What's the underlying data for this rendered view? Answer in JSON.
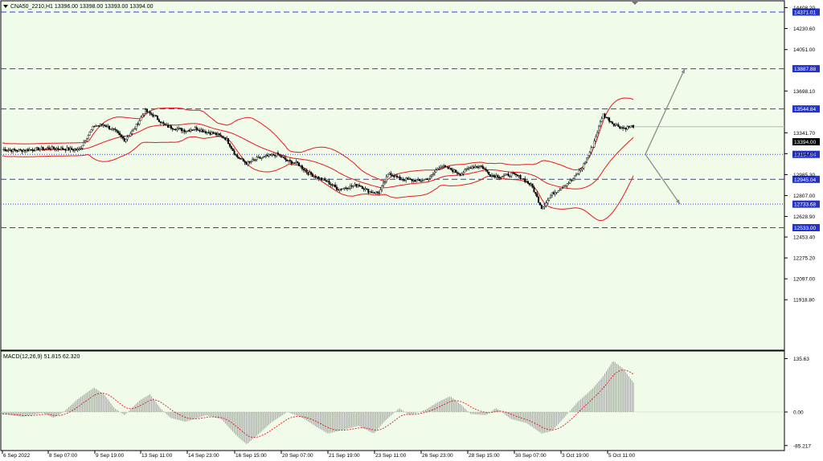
{
  "colors": {
    "background": "#f0fbea",
    "frame": "#000000",
    "bollinger": "#e8181e",
    "level_line": "#2f3ee0",
    "level_tag": "#2432cc",
    "price_tag": "#000000",
    "forecast_arrow": "#8c8c8c",
    "macd_hist": "#8c8c8c",
    "macd_signal": "#e8181e"
  },
  "price_panel": {
    "title": "CNA50_2210,H1  13396.00 13398.00 13393.00 13394.00",
    "collapse_icon": "triangle-down-icon",
    "y_ticks": [
      "14408.20",
      "14230.60",
      "14051.00",
      "13698.10",
      "13341.70",
      "13164.00",
      "12985.30",
      "12807.00",
      "12628.90",
      "12453.40",
      "12275.20",
      "12097.00",
      "11918.80"
    ],
    "current_price": "13394.00",
    "levels": [
      {
        "label": "14371.01",
        "style": "dashed"
      },
      {
        "label": "13887.88",
        "style": "dashed"
      },
      {
        "label": "13544.84",
        "style": "dashed"
      },
      {
        "label": "13157.84",
        "style": "dotted"
      },
      {
        "label": "12945.04",
        "style": "dashed"
      },
      {
        "label": "12733.68",
        "style": "dotted"
      },
      {
        "label": "12533.00",
        "style": "dashed"
      }
    ]
  },
  "macd_panel": {
    "title": "MACD(12,26,9) 51.815 62.320",
    "y_ticks": [
      "135.63",
      "0.00",
      "-85.217"
    ]
  },
  "x_axis": {
    "labels": [
      "6 Sep 2022",
      "8 Sep 07:00",
      "9 Sep 19:00",
      "13 Sep 11:00",
      "14 Sep 23:00",
      "16 Sep 15:00",
      "20 Sep 07:00",
      "21 Sep 19:00",
      "23 Sep 11:00",
      "26 Sep 23:00",
      "28 Sep 15:00",
      "30 Sep 07:00",
      "3 Oct 19:00",
      "5 Oct 11:00"
    ]
  },
  "chart_data": {
    "type": "candlestick",
    "instrument": "CNA50_2210",
    "timeframe": "H1",
    "approx_close_path": [
      [
        0,
        13200
      ],
      [
        3,
        13190
      ],
      [
        6,
        13200
      ],
      [
        9,
        13210
      ],
      [
        12,
        13205
      ],
      [
        15,
        13195
      ],
      [
        18,
        13400
      ],
      [
        20,
        13410
      ],
      [
        22,
        13360
      ],
      [
        24,
        13280
      ],
      [
        26,
        13380
      ],
      [
        28,
        13530
      ],
      [
        30,
        13480
      ],
      [
        32,
        13400
      ],
      [
        34,
        13380
      ],
      [
        36,
        13360
      ],
      [
        38,
        13380
      ],
      [
        40,
        13350
      ],
      [
        42,
        13330
      ],
      [
        44,
        13290
      ],
      [
        46,
        13140
      ],
      [
        48,
        13080
      ],
      [
        50,
        13120
      ],
      [
        52,
        13140
      ],
      [
        54,
        13160
      ],
      [
        56,
        13100
      ],
      [
        58,
        13080
      ],
      [
        60,
        13000
      ],
      [
        62,
        12960
      ],
      [
        64,
        12920
      ],
      [
        66,
        12860
      ],
      [
        68,
        12880
      ],
      [
        70,
        12900
      ],
      [
        72,
        12840
      ],
      [
        74,
        12830
      ],
      [
        76,
        13000
      ],
      [
        78,
        12950
      ],
      [
        80,
        12940
      ],
      [
        82,
        12930
      ],
      [
        84,
        12960
      ],
      [
        86,
        13060
      ],
      [
        88,
        13030
      ],
      [
        90,
        12990
      ],
      [
        92,
        13050
      ],
      [
        94,
        13060
      ],
      [
        96,
        12980
      ],
      [
        98,
        12970
      ],
      [
        100,
        12990
      ],
      [
        102,
        12960
      ],
      [
        104,
        12890
      ],
      [
        106,
        12700
      ],
      [
        108,
        12820
      ],
      [
        110,
        12880
      ],
      [
        112,
        12940
      ],
      [
        114,
        13050
      ],
      [
        116,
        13230
      ],
      [
        118,
        13500
      ],
      [
        120,
        13420
      ],
      [
        122,
        13380
      ],
      [
        124,
        13400
      ]
    ],
    "bollinger_bands": "20-period, upper/middle/lower drawn in red",
    "forecast": [
      {
        "from": 13157.84,
        "to": 13887.88
      },
      {
        "from": 13157.84,
        "to": 12733.68
      }
    ],
    "macd": {
      "params": [
        12,
        26,
        9
      ],
      "main": 51.815,
      "signal": 62.32,
      "hist_path": [
        [
          0,
          -5
        ],
        [
          4,
          -12
        ],
        [
          8,
          -2
        ],
        [
          10,
          -15
        ],
        [
          12,
          0
        ],
        [
          15,
          35
        ],
        [
          18,
          62
        ],
        [
          20,
          45
        ],
        [
          22,
          10
        ],
        [
          24,
          -8
        ],
        [
          27,
          30
        ],
        [
          29,
          45
        ],
        [
          31,
          10
        ],
        [
          33,
          -15
        ],
        [
          36,
          -25
        ],
        [
          40,
          -8
        ],
        [
          43,
          -18
        ],
        [
          46,
          -60
        ],
        [
          48,
          -82
        ],
        [
          50,
          -60
        ],
        [
          53,
          -25
        ],
        [
          56,
          0
        ],
        [
          59,
          -15
        ],
        [
          62,
          -40
        ],
        [
          64,
          -55
        ],
        [
          67,
          -45
        ],
        [
          70,
          -35
        ],
        [
          73,
          -55
        ],
        [
          75,
          -25
        ],
        [
          78,
          10
        ],
        [
          80,
          -8
        ],
        [
          83,
          5
        ],
        [
          86,
          28
        ],
        [
          88,
          40
        ],
        [
          90,
          20
        ],
        [
          92,
          -5
        ],
        [
          95,
          -8
        ],
        [
          97,
          10
        ],
        [
          100,
          -18
        ],
        [
          103,
          -28
        ],
        [
          106,
          -55
        ],
        [
          108,
          -48
        ],
        [
          110,
          -20
        ],
        [
          113,
          25
        ],
        [
          116,
          60
        ],
        [
          118,
          90
        ],
        [
          120,
          130
        ],
        [
          122,
          110
        ],
        [
          124,
          75
        ]
      ]
    }
  }
}
